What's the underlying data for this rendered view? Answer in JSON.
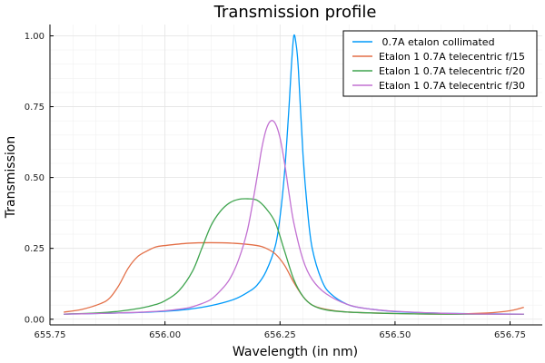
{
  "chart_data": {
    "type": "line",
    "title": "Transmission profile",
    "xlabel": "Wavelength (in nm)",
    "ylabel": "Transmission",
    "xlim": [
      655.75,
      656.82
    ],
    "ylim": [
      -0.02,
      1.04
    ],
    "xticks": [
      655.75,
      656.0,
      656.25,
      656.5,
      656.75
    ],
    "xtick_labels": [
      "655.75",
      "656.00",
      "656.25",
      "656.50",
      "656.75"
    ],
    "yticks": [
      0.0,
      0.25,
      0.5,
      0.75,
      1.0
    ],
    "ytick_labels": [
      "0.00",
      "0.25",
      "0.50",
      "0.75",
      "1.00"
    ],
    "grid": true,
    "legend_position": "top-right",
    "series": [
      {
        "name": " 0.7A etalon collimated",
        "color": "#009AFA",
        "x": [
          655.78,
          655.85,
          655.9,
          655.95,
          656.0,
          656.05,
          656.1,
          656.15,
          656.18,
          656.2,
          656.22,
          656.24,
          656.25,
          656.26,
          656.27,
          656.275,
          656.28,
          656.285,
          656.29,
          656.3,
          656.31,
          656.32,
          656.34,
          656.36,
          656.4,
          656.45,
          656.5,
          656.6,
          656.7,
          656.78
        ],
        "y": [
          0.018,
          0.02,
          0.022,
          0.024,
          0.028,
          0.035,
          0.048,
          0.07,
          0.095,
          0.12,
          0.17,
          0.26,
          0.36,
          0.52,
          0.76,
          0.9,
          1.0,
          0.97,
          0.88,
          0.58,
          0.38,
          0.25,
          0.14,
          0.09,
          0.05,
          0.035,
          0.027,
          0.021,
          0.019,
          0.018
        ]
      },
      {
        "name": "Etalon 1 0.7A telecentric f/15",
        "color": "#E36F47",
        "x": [
          655.78,
          655.82,
          655.86,
          655.88,
          655.9,
          655.92,
          655.94,
          655.96,
          655.98,
          656.0,
          656.05,
          656.1,
          656.15,
          656.2,
          656.22,
          656.24,
          656.26,
          656.28,
          656.3,
          656.32,
          656.35,
          656.4,
          656.5,
          656.6,
          656.7,
          656.75,
          656.78
        ],
        "y": [
          0.025,
          0.035,
          0.055,
          0.075,
          0.12,
          0.18,
          0.22,
          0.24,
          0.255,
          0.26,
          0.268,
          0.27,
          0.268,
          0.26,
          0.25,
          0.23,
          0.19,
          0.13,
          0.08,
          0.05,
          0.035,
          0.025,
          0.02,
          0.018,
          0.022,
          0.03,
          0.042
        ]
      },
      {
        "name": "Etalon 1 0.7A telecentric f/20",
        "color": "#3EA44E",
        "x": [
          655.78,
          655.85,
          655.9,
          655.95,
          655.98,
          656.0,
          656.03,
          656.06,
          656.08,
          656.1,
          656.12,
          656.14,
          656.16,
          656.18,
          656.2,
          656.22,
          656.24,
          656.26,
          656.28,
          656.3,
          656.32,
          656.35,
          656.4,
          656.5,
          656.6,
          656.7,
          656.78
        ],
        "y": [
          0.018,
          0.022,
          0.028,
          0.04,
          0.052,
          0.065,
          0.1,
          0.17,
          0.25,
          0.33,
          0.38,
          0.41,
          0.423,
          0.425,
          0.42,
          0.39,
          0.34,
          0.24,
          0.14,
          0.08,
          0.05,
          0.033,
          0.025,
          0.02,
          0.018,
          0.018,
          0.018
        ]
      },
      {
        "name": "Etalon 1 0.7A telecentric f/30",
        "color": "#C271D2",
        "x": [
          655.78,
          655.85,
          655.9,
          655.95,
          656.0,
          656.05,
          656.08,
          656.1,
          656.12,
          656.14,
          656.16,
          656.18,
          656.2,
          656.21,
          656.22,
          656.23,
          656.24,
          656.25,
          656.26,
          656.27,
          656.28,
          656.3,
          656.32,
          656.35,
          656.4,
          656.45,
          656.5,
          656.6,
          656.7,
          656.78
        ],
        "y": [
          0.018,
          0.02,
          0.022,
          0.025,
          0.03,
          0.04,
          0.055,
          0.07,
          0.1,
          0.14,
          0.21,
          0.32,
          0.5,
          0.6,
          0.67,
          0.7,
          0.69,
          0.64,
          0.55,
          0.44,
          0.34,
          0.21,
          0.14,
          0.09,
          0.05,
          0.035,
          0.028,
          0.021,
          0.018,
          0.018
        ]
      }
    ]
  }
}
